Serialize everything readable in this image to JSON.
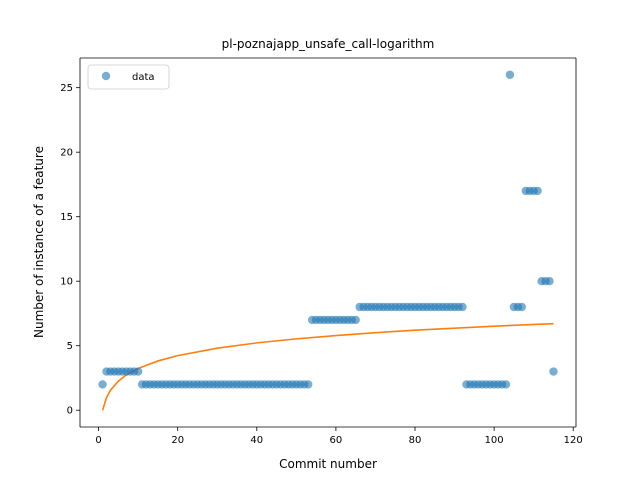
{
  "chart_data": {
    "type": "scatter",
    "title": "pl-poznajapp_unsafe_call-logarithm",
    "xlabel": "Commit number",
    "ylabel": "Number of instance of a feature",
    "xlim": [
      -4.7,
      120.7
    ],
    "ylim": [
      -1.3,
      27.3
    ],
    "xticks": [
      0,
      20,
      40,
      60,
      80,
      100,
      120
    ],
    "yticks": [
      0,
      5,
      10,
      15,
      20,
      25
    ],
    "grid": false,
    "legend": {
      "location": "upper left",
      "entries": [
        "data"
      ]
    },
    "colors": {
      "data": "#1f77b4",
      "fit": "#ff7f0e"
    },
    "series": [
      {
        "name": "data",
        "kind": "scatter",
        "x": [
          1,
          2,
          3,
          4,
          5,
          6,
          7,
          8,
          9,
          10,
          11,
          12,
          13,
          14,
          15,
          16,
          17,
          18,
          19,
          20,
          21,
          22,
          23,
          24,
          25,
          26,
          27,
          28,
          29,
          30,
          31,
          32,
          33,
          34,
          35,
          36,
          37,
          38,
          39,
          40,
          41,
          42,
          43,
          44,
          45,
          46,
          47,
          48,
          49,
          50,
          51,
          52,
          53,
          54,
          55,
          56,
          57,
          58,
          59,
          60,
          61,
          62,
          63,
          64,
          65,
          66,
          67,
          68,
          69,
          70,
          71,
          72,
          73,
          74,
          75,
          76,
          77,
          78,
          79,
          80,
          81,
          82,
          83,
          84,
          85,
          86,
          87,
          88,
          89,
          90,
          91,
          92,
          93,
          94,
          95,
          96,
          97,
          98,
          99,
          100,
          101,
          102,
          103,
          104,
          105,
          106,
          107,
          108,
          109,
          110,
          111,
          112,
          113,
          114,
          115
        ],
        "y": [
          2,
          3,
          3,
          3,
          3,
          3,
          3,
          3,
          3,
          3,
          2,
          2,
          2,
          2,
          2,
          2,
          2,
          2,
          2,
          2,
          2,
          2,
          2,
          2,
          2,
          2,
          2,
          2,
          2,
          2,
          2,
          2,
          2,
          2,
          2,
          2,
          2,
          2,
          2,
          2,
          2,
          2,
          2,
          2,
          2,
          2,
          2,
          2,
          2,
          2,
          2,
          2,
          2,
          7,
          7,
          7,
          7,
          7,
          7,
          7,
          7,
          7,
          7,
          7,
          7,
          8,
          8,
          8,
          8,
          8,
          8,
          8,
          8,
          8,
          8,
          8,
          8,
          8,
          8,
          8,
          8,
          8,
          8,
          8,
          8,
          8,
          8,
          8,
          8,
          8,
          8,
          8,
          2,
          2,
          2,
          2,
          2,
          2,
          2,
          2,
          2,
          2,
          2,
          26,
          8,
          8,
          8,
          17,
          17,
          17,
          17,
          10,
          10,
          10,
          3
        ]
      },
      {
        "name": "",
        "kind": "line",
        "x": [
          1,
          2,
          3,
          5,
          7,
          10,
          15,
          20,
          30,
          40,
          50,
          60,
          70,
          80,
          90,
          100,
          110,
          115
        ],
        "y": [
          0.0,
          0.98,
          1.55,
          2.26,
          2.74,
          3.24,
          3.82,
          4.23,
          4.81,
          5.22,
          5.53,
          5.79,
          6.01,
          6.2,
          6.36,
          6.51,
          6.65,
          6.71
        ]
      }
    ]
  }
}
